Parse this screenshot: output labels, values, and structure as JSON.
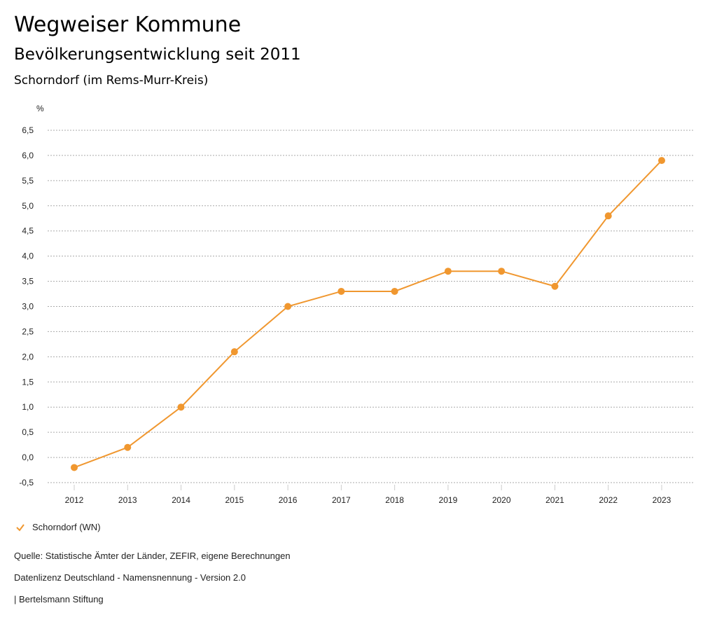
{
  "header": {
    "title": "Wegweiser Kommune",
    "subtitle": "Bevölkerungsentwicklung seit 2011",
    "region": "Schorndorf (im Rems-Murr-Kreis)"
  },
  "chart_data": {
    "type": "line",
    "ylabel": "%",
    "ylim": [
      -0.5,
      6.5
    ],
    "yticks": [
      "-0,5",
      "0,0",
      "0,5",
      "1,0",
      "1,5",
      "2,0",
      "2,5",
      "3,0",
      "3,5",
      "4,0",
      "4,5",
      "5,0",
      "5,5",
      "6,0",
      "6,5"
    ],
    "grid": true,
    "categories": [
      "2012",
      "2013",
      "2014",
      "2015",
      "2016",
      "2017",
      "2018",
      "2019",
      "2020",
      "2021",
      "2022",
      "2023"
    ],
    "series": [
      {
        "name": "Schorndorf (WN)",
        "color": "#f0972f",
        "values": [
          -0.2,
          0.2,
          1.0,
          2.1,
          3.0,
          3.3,
          3.3,
          3.7,
          3.7,
          3.4,
          4.8,
          5.9
        ]
      }
    ],
    "legend": "bottom-left"
  },
  "footer": {
    "source": "Quelle: Statistische Ämter der Länder, ZEFIR, eigene Berechnungen",
    "license": "Datenlizenz Deutschland - Namensnennung - Version 2.0",
    "org": "| Bertelsmann Stiftung"
  }
}
